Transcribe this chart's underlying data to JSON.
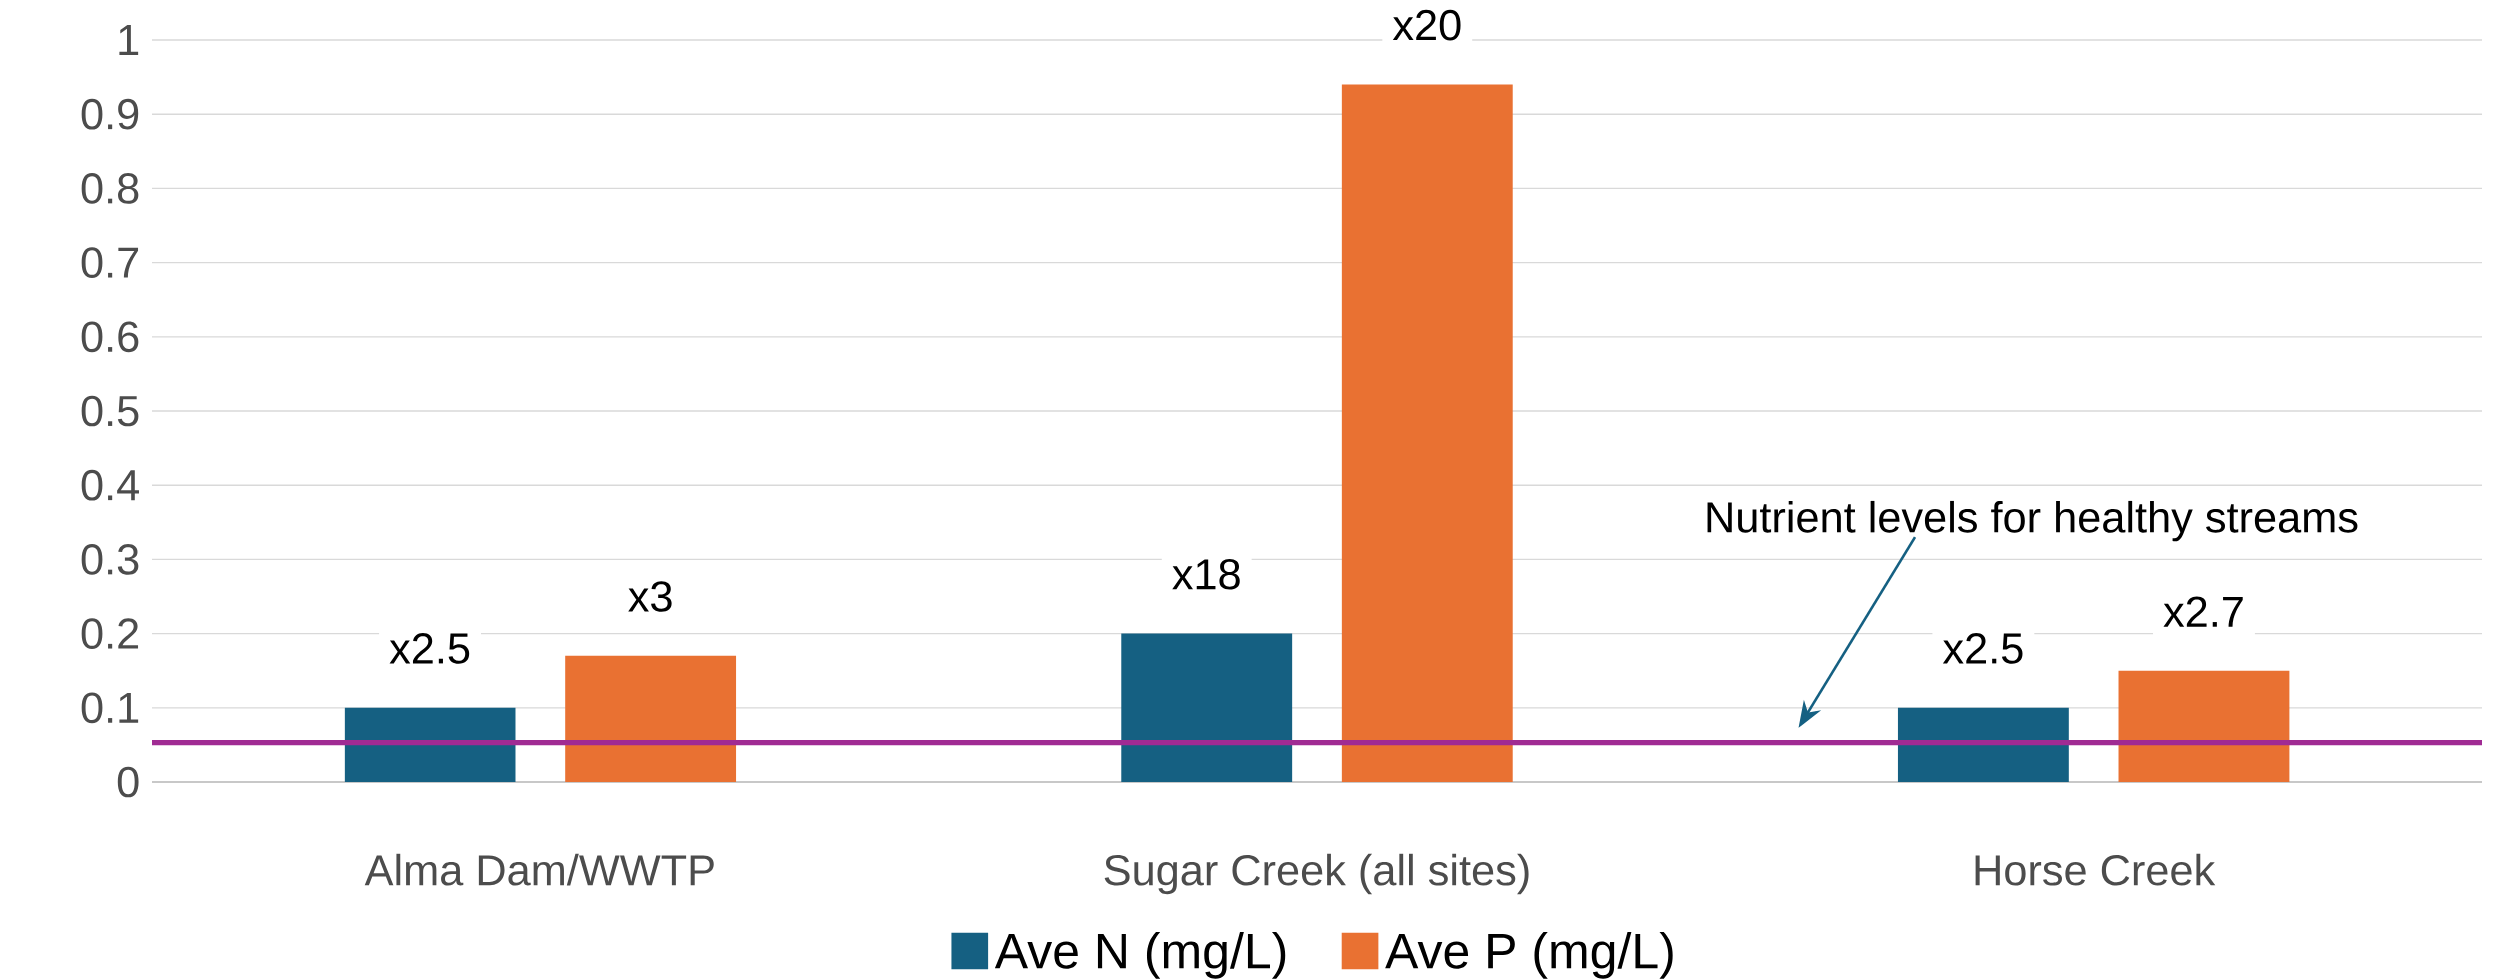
{
  "chart_data": {
    "type": "bar",
    "categories": [
      "Alma Dam/WWTP",
      "Sugar Creek (all sites)",
      "Horse Creek"
    ],
    "series": [
      {
        "name": "Ave N (mg/L)",
        "color": "#156082",
        "values": [
          0.1,
          0.2,
          0.1
        ],
        "value_labels": [
          "x2.5",
          "x18",
          "x2.5"
        ]
      },
      {
        "name": "Ave P (mg/L)",
        "color": "#e97132",
        "values": [
          0.17,
          0.94,
          0.15
        ],
        "value_labels": [
          "x3",
          "x20",
          "x2.7"
        ]
      }
    ],
    "ylim": [
      0,
      1
    ],
    "yticks": [
      0,
      0.1,
      0.2,
      0.3,
      0.4,
      0.5,
      0.6,
      0.7,
      0.8,
      0.9,
      1
    ],
    "grid": "y",
    "legend": "bottom",
    "ref_lines": [
      {
        "axis": "y",
        "value": 0.053,
        "color": "#a02b93"
      }
    ],
    "annotations": [
      "Nutrient levels for healthy streams"
    ]
  }
}
